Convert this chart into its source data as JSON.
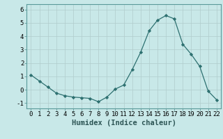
{
  "x": [
    0,
    1,
    2,
    3,
    4,
    5,
    6,
    7,
    8,
    9,
    10,
    11,
    12,
    13,
    14,
    15,
    16,
    17,
    18,
    19,
    20,
    21,
    22
  ],
  "y": [
    1.1,
    0.65,
    0.2,
    -0.25,
    -0.45,
    -0.55,
    -0.6,
    -0.65,
    -0.9,
    -0.55,
    0.05,
    0.35,
    1.5,
    2.8,
    4.4,
    5.2,
    5.55,
    5.3,
    3.4,
    2.65,
    1.75,
    -0.1,
    -0.75
  ],
  "line_color": "#2d7070",
  "marker": "D",
  "marker_size": 2.2,
  "bg_color": "#c8e8e8",
  "grid_color": "#b0cccc",
  "xlabel": "Humidex (Indice chaleur)",
  "xlabel_fontsize": 7.5,
  "ytick_labels": [
    "-1",
    "0",
    "1",
    "2",
    "3",
    "4",
    "5",
    "6"
  ],
  "ytick_values": [
    -1,
    0,
    1,
    2,
    3,
    4,
    5,
    6
  ],
  "xlim": [
    -0.5,
    22.5
  ],
  "ylim": [
    -1.4,
    6.4
  ],
  "tick_fontsize": 6.5
}
